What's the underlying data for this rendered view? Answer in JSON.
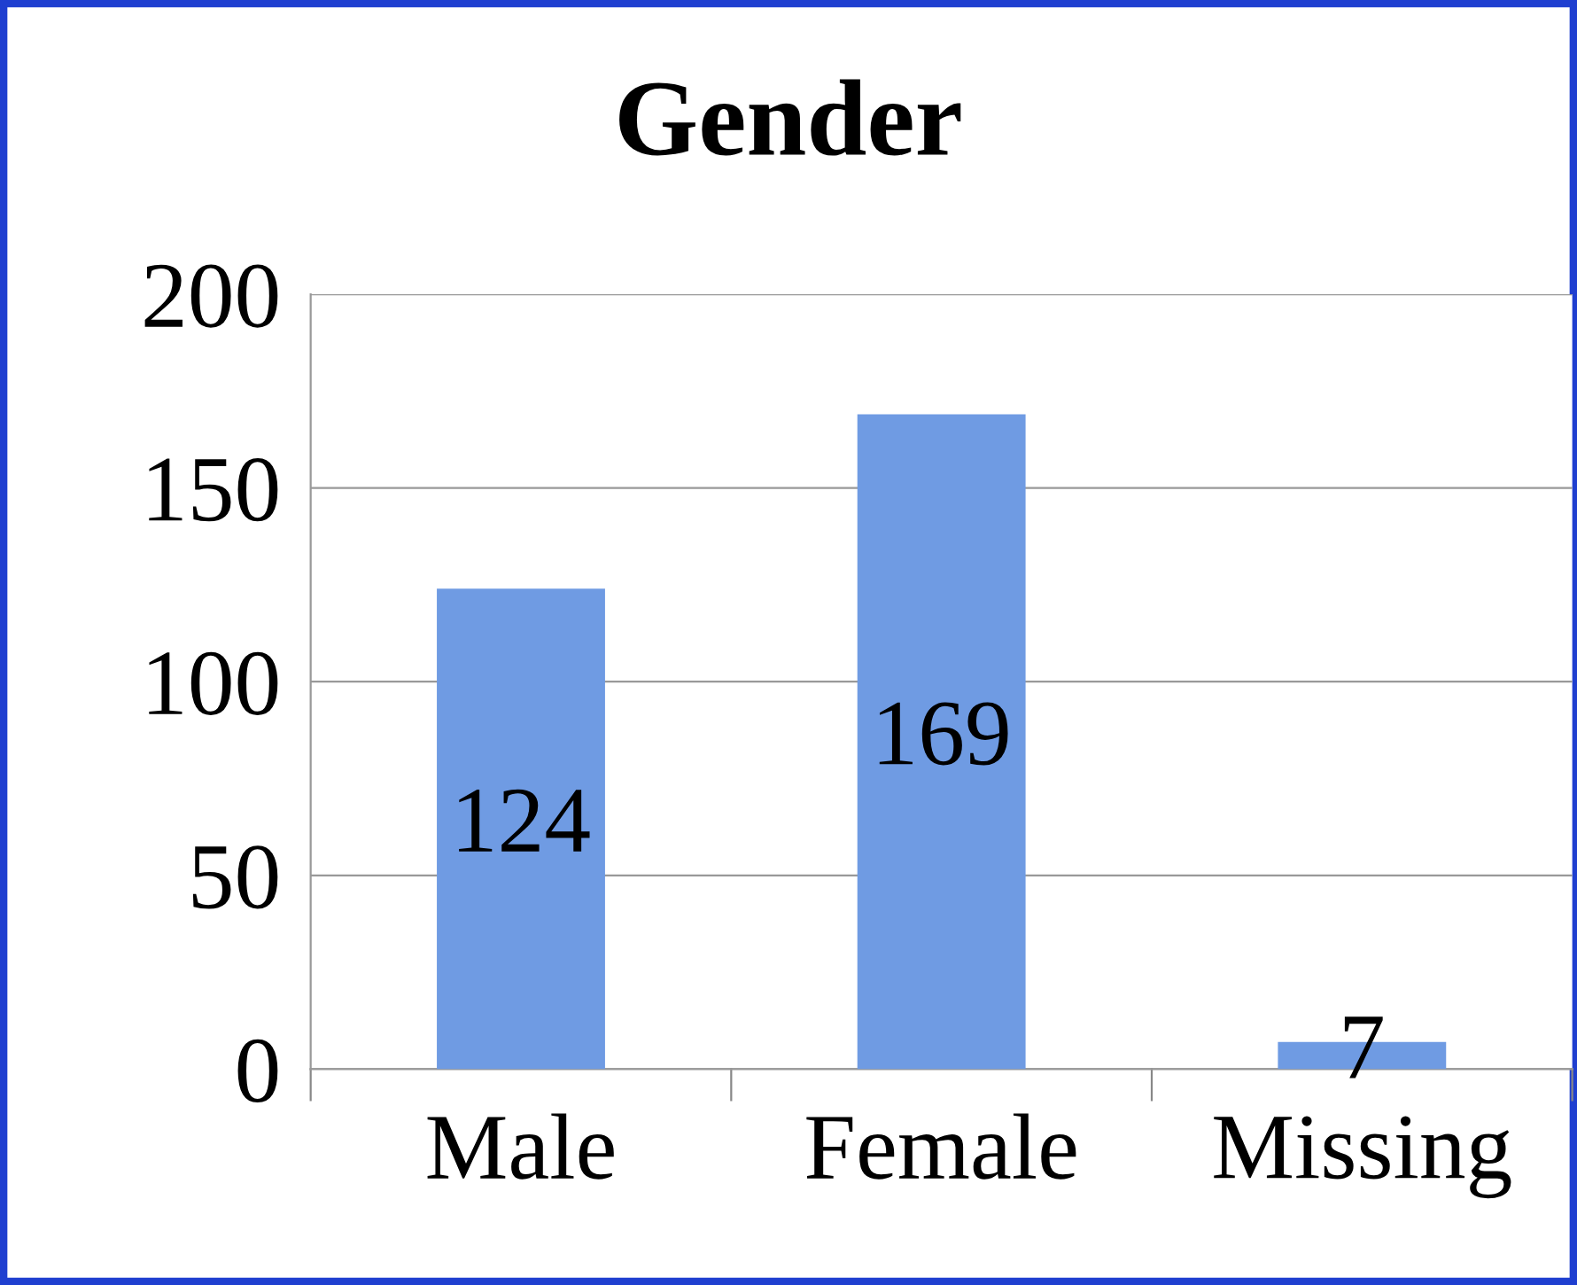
{
  "chart_data": {
    "type": "bar",
    "title": "Gender",
    "categories": [
      "Male",
      "Female",
      "Missing"
    ],
    "values": [
      124,
      169,
      7
    ],
    "color": "#6f9be3",
    "ylim": [
      0,
      200
    ],
    "yticks": [
      0,
      50,
      100,
      150,
      200
    ],
    "grid": "y",
    "data_labels": true,
    "legend": false
  }
}
